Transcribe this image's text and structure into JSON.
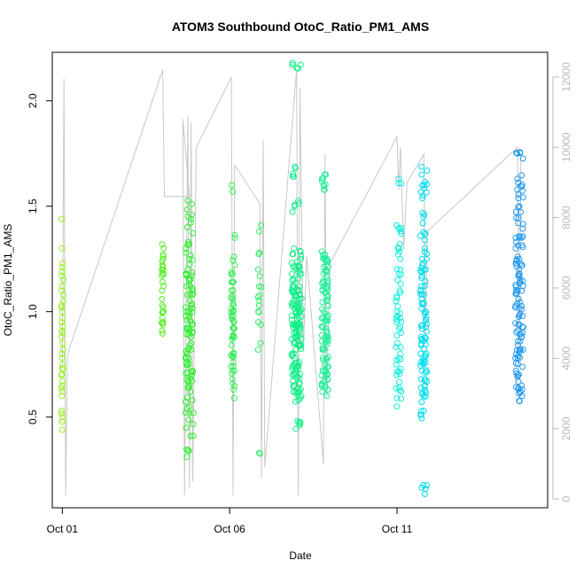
{
  "chart_data": {
    "type": "scatter",
    "title": "ATOM3 Southbound OtoC_Ratio_PM1_AMS",
    "xlabel": "Date",
    "ylabel": "OtoC_Ratio_PM1_AMS",
    "x_ticks": [
      "Oct 01",
      "Oct 06",
      "Oct 11"
    ],
    "x_tick_days": [
      1,
      6,
      11
    ],
    "xlim_days": [
      0.7,
      15.5
    ],
    "y_ticks": [
      0.5,
      1.0,
      1.5,
      2.0
    ],
    "y_tick_labels": [
      "0.5",
      "1.0",
      "1.5",
      "2.0"
    ],
    "ylim": [
      0.07,
      2.23
    ],
    "y2_ticks": [
      0,
      2000,
      4000,
      6000,
      8000,
      10000,
      12000
    ],
    "y2_tick_labels": [
      "0",
      "2000",
      "4000",
      "6000",
      "8000",
      "10000",
      "12000"
    ],
    "y2lim": [
      -250,
      12700
    ],
    "grid": false,
    "point_colors": {
      "day1": "#99ee22",
      "day4": "#55ee22",
      "day5": "#33ee33",
      "day6": "#33ee55",
      "day7": "#33ee66",
      "day8": "#11ee88",
      "day9": "#22ee99",
      "day11": "#11eedd",
      "day12": "#00ddee",
      "day15": "#2299ee"
    },
    "line_color": "#c8c8c8",
    "clusters": [
      {
        "day": 1.0,
        "spread": 0.03,
        "n": 40,
        "values": [
          0.44,
          0.5,
          0.53,
          0.6,
          0.65,
          0.67,
          0.7,
          0.73,
          0.75,
          0.78,
          0.8,
          0.82,
          0.85,
          0.88,
          0.9,
          0.91,
          0.93,
          0.95,
          0.97,
          1.0,
          1.02,
          1.03,
          1.05,
          1.08,
          1.1,
          1.12,
          1.15,
          1.17,
          1.19,
          1.21,
          1.23,
          1.3,
          1.44
        ],
        "color_key": "day1"
      },
      {
        "day": 4.0,
        "spread": 0.03,
        "n": 30,
        "values": [
          0.91,
          0.95,
          0.97,
          1.0,
          1.02,
          1.06,
          1.1,
          1.14,
          1.17,
          1.2,
          1.22,
          1.25,
          1.27,
          1.3
        ],
        "color_key": "day4"
      },
      {
        "day": 4.8,
        "spread": 0.12,
        "n": 110,
        "values": [
          0.34,
          0.45,
          0.52,
          0.55,
          0.58,
          0.62,
          0.65,
          0.68,
          0.7,
          0.72,
          0.75,
          0.78,
          0.8,
          0.82,
          0.85,
          0.88,
          0.9,
          0.92,
          0.94,
          0.96,
          0.98,
          1.0,
          1.02,
          1.05,
          1.08,
          1.1,
          1.12,
          1.15,
          1.18,
          1.2,
          1.25,
          1.28,
          1.33,
          1.4,
          1.45,
          1.51
        ],
        "color_key": "day5"
      },
      {
        "day": 6.1,
        "spread": 0.06,
        "n": 55,
        "values": [
          0.63,
          0.68,
          0.72,
          0.76,
          0.8,
          0.84,
          0.88,
          0.92,
          0.95,
          0.98,
          1.0,
          1.03,
          1.06,
          1.1,
          1.14,
          1.18,
          1.22,
          1.26,
          1.35,
          1.57
        ],
        "color_key": "day6"
      },
      {
        "day": 6.9,
        "spread": 0.06,
        "n": 20,
        "values": [
          0.33,
          0.82,
          0.95,
          1.0,
          1.03,
          1.07,
          1.12,
          1.2,
          1.28,
          1.38,
          1.41
        ],
        "color_key": "day7"
      },
      {
        "day": 8.0,
        "spread": 0.15,
        "n": 170,
        "values": [
          0.46,
          0.58,
          0.62,
          0.66,
          0.7,
          0.73,
          0.76,
          0.79,
          0.82,
          0.85,
          0.87,
          0.9,
          0.92,
          0.94,
          0.96,
          0.98,
          1.0,
          1.02,
          1.04,
          1.06,
          1.08,
          1.1,
          1.12,
          1.15,
          1.18,
          1.21,
          1.25,
          1.3,
          1.5,
          1.68,
          2.17
        ],
        "color_key": "day8"
      },
      {
        "day": 8.85,
        "spread": 0.1,
        "n": 110,
        "values": [
          0.63,
          0.66,
          0.7,
          0.74,
          0.78,
          0.82,
          0.86,
          0.9,
          0.93,
          0.96,
          1.0,
          1.03,
          1.07,
          1.1,
          1.14,
          1.18,
          1.22,
          1.25,
          1.27,
          1.6,
          1.62
        ],
        "color_key": "day9"
      },
      {
        "day": 11.05,
        "spread": 0.08,
        "n": 60,
        "values": [
          0.59,
          0.64,
          0.7,
          0.75,
          0.8,
          0.85,
          0.9,
          0.95,
          0.98,
          1.0,
          1.05,
          1.1,
          1.15,
          1.2,
          1.25,
          1.3,
          1.37,
          1.41,
          1.63
        ],
        "color_key": "day11"
      },
      {
        "day": 11.8,
        "spread": 0.1,
        "n": 110,
        "values": [
          0.16,
          0.53,
          0.6,
          0.64,
          0.68,
          0.72,
          0.76,
          0.8,
          0.84,
          0.88,
          0.92,
          0.96,
          1.0,
          1.04,
          1.08,
          1.12,
          1.16,
          1.2,
          1.25,
          1.3,
          1.36,
          1.45,
          1.55,
          1.6,
          1.65
        ],
        "color_key": "day12"
      },
      {
        "day": 14.65,
        "spread": 0.12,
        "n": 120,
        "values": [
          0.6,
          0.65,
          0.72,
          0.78,
          0.82,
          0.86,
          0.9,
          0.94,
          0.98,
          1.02,
          1.06,
          1.1,
          1.14,
          1.18,
          1.22,
          1.26,
          1.3,
          1.35,
          1.42,
          1.5,
          1.58,
          1.63,
          1.75
        ],
        "color_key": "day15"
      }
    ],
    "secondary_line": {
      "axis": "right",
      "series_points_day_value": [
        [
          1.0,
          3700
        ],
        [
          1.05,
          11950
        ],
        [
          1.1,
          100
        ],
        [
          1.15,
          4100
        ],
        [
          4.0,
          12200
        ],
        [
          4.05,
          8600
        ],
        [
          4.8,
          8600
        ],
        [
          4.6,
          10800
        ],
        [
          4.65,
          100
        ],
        [
          4.75,
          10900
        ],
        [
          4.8,
          300
        ],
        [
          4.85,
          10700
        ],
        [
          4.9,
          500
        ],
        [
          5.0,
          10000
        ],
        [
          6.05,
          12000
        ],
        [
          6.1,
          100
        ],
        [
          6.15,
          9500
        ],
        [
          6.9,
          8400
        ],
        [
          6.95,
          600
        ],
        [
          7.0,
          10200
        ],
        [
          7.05,
          900
        ],
        [
          8.0,
          12200
        ],
        [
          8.05,
          100
        ],
        [
          8.1,
          11700
        ],
        [
          8.2,
          4200
        ],
        [
          8.3,
          6900
        ],
        [
          8.8,
          1000
        ],
        [
          8.85,
          9800
        ],
        [
          8.9,
          2900
        ],
        [
          9.0,
          6700
        ],
        [
          11.0,
          10300
        ],
        [
          11.05,
          8800
        ],
        [
          11.1,
          10000
        ],
        [
          11.2,
          7100
        ],
        [
          11.3,
          9000
        ],
        [
          11.8,
          9800
        ],
        [
          11.85,
          4600
        ],
        [
          11.9,
          7600
        ],
        [
          14.6,
          10000
        ],
        [
          14.65,
          4200
        ],
        [
          14.7,
          9700
        ]
      ]
    }
  }
}
